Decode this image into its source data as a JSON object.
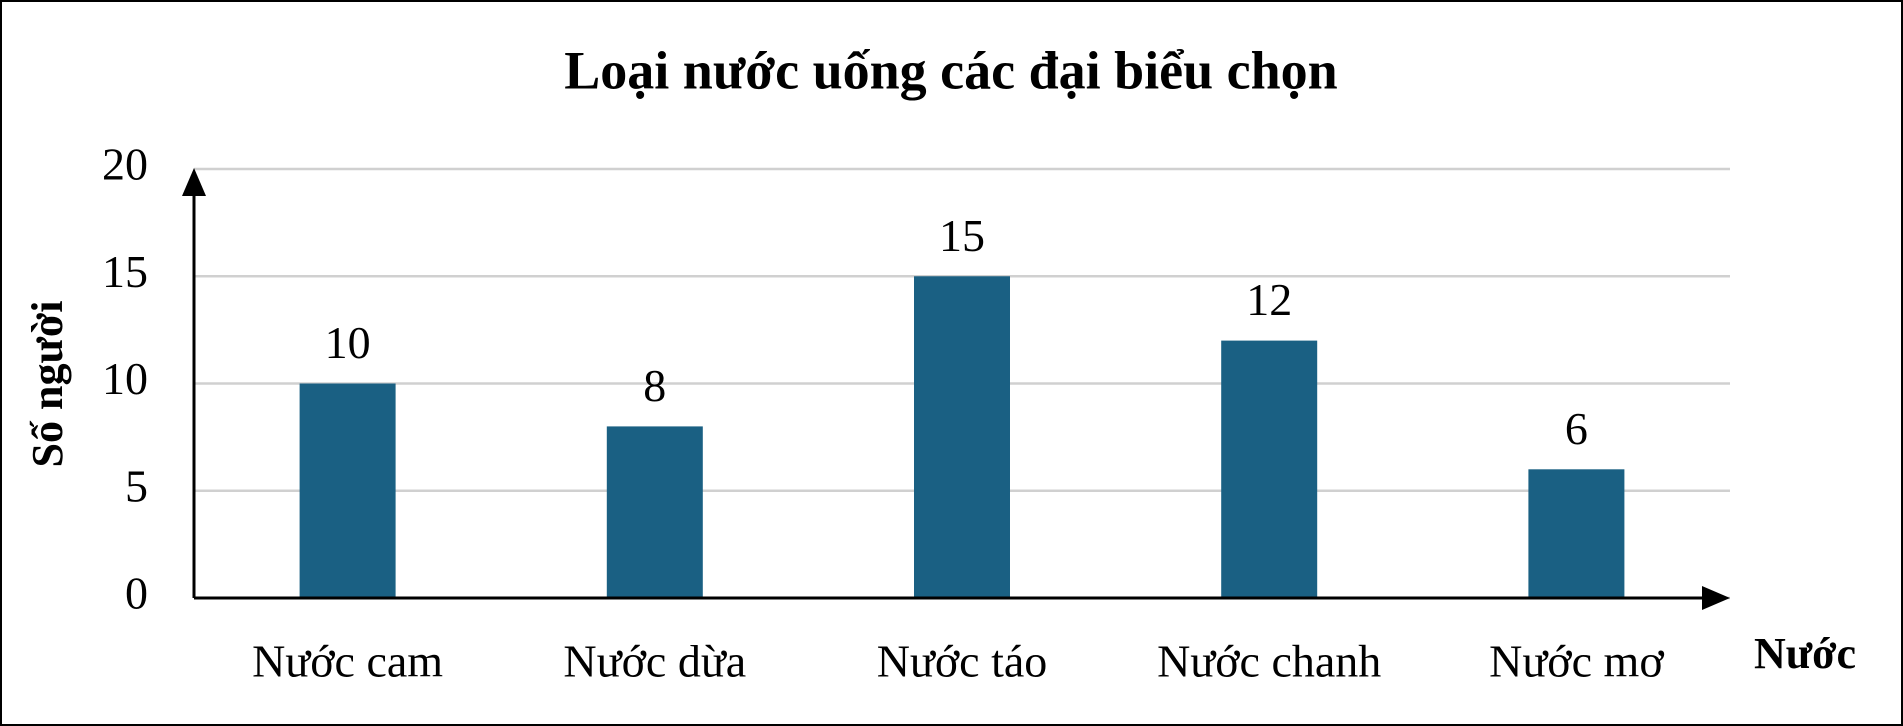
{
  "chart_data": {
    "type": "bar",
    "title": "Loại nước uống các đại biểu chọn",
    "x_label": "Nước",
    "y_label": "Số người",
    "categories": [
      "Nước cam",
      "Nước dừa",
      "Nước táo",
      "Nước chanh",
      "Nước mơ"
    ],
    "values": [
      10,
      8,
      15,
      12,
      6
    ],
    "color": "#1a6083",
    "ylim": [
      0,
      20
    ],
    "yticks": [
      0,
      5,
      10,
      15,
      20
    ],
    "grid": true
  }
}
